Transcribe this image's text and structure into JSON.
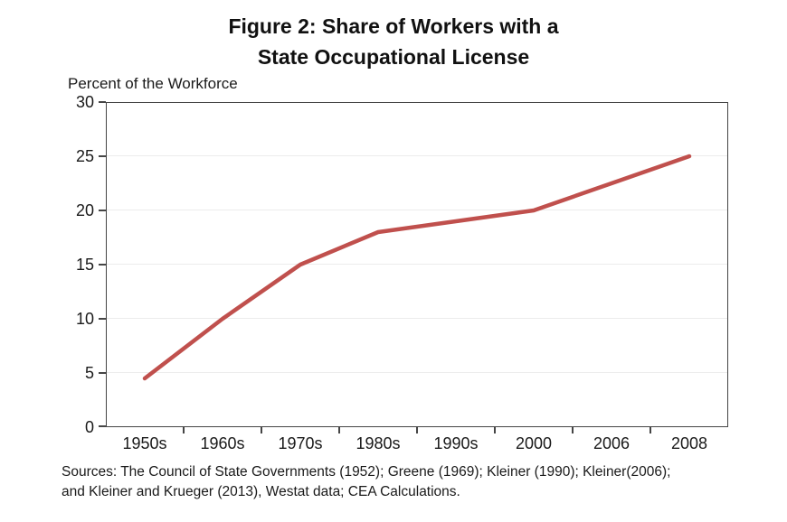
{
  "figure": {
    "title_line1": "Figure 2: Share of Workers with a",
    "title_line2": "State Occupational License",
    "y_axis_title": "Percent of the Workforce",
    "sources_line1": "Sources: The Council of State Governments (1952); Greene (1969); Kleiner (1990); Kleiner(2006);",
    "sources_line2": "and Kleiner and Krueger (2013), Westat data; CEA Calculations."
  },
  "axes": {
    "y_tick_labels_top_to_bottom": [
      "30",
      "25",
      "20",
      "15",
      "10",
      "5",
      "0"
    ]
  },
  "chart_data": {
    "type": "line",
    "title": "Figure 2: Share of Workers with a State Occupational License",
    "categories": [
      "1950s",
      "1960s",
      "1970s",
      "1980s",
      "1990s",
      "2000",
      "2006",
      "2008"
    ],
    "values": [
      4.5,
      10,
      15,
      18,
      19,
      20,
      22.5,
      25
    ],
    "xlabel": "",
    "ylabel": "Percent of the Workforce",
    "ylim": [
      0,
      30
    ],
    "ytick_interval": 5,
    "grid": "horizontal-only",
    "legend_position": "none",
    "line_color": "#C0504D",
    "line_width": 4.5
  }
}
